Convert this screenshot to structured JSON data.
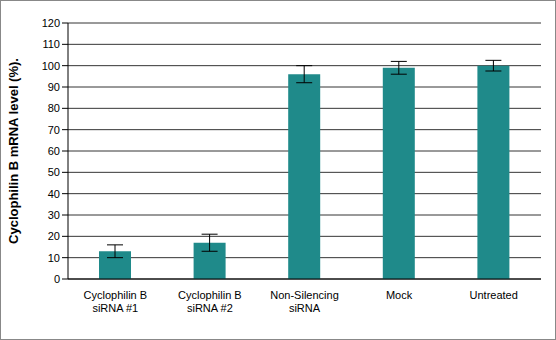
{
  "chart_data": {
    "type": "bar",
    "y_label": "Cyclophilin B mRNA level (%).",
    "categories": [
      "Cyclophilin B siRNA #1",
      "Cyclophilin B siRNA #2",
      "Non-Silencing siRNA",
      "Mock",
      "Untreated"
    ],
    "values": [
      13,
      17,
      96,
      99,
      100
    ],
    "errors": [
      3,
      4,
      4,
      3,
      2.5
    ],
    "color": "#1f8a8a",
    "ylim": [
      0,
      120
    ],
    "yticks": [
      0,
      10,
      20,
      30,
      40,
      50,
      60,
      70,
      80,
      90,
      100,
      110,
      120
    ],
    "grid": true
  }
}
